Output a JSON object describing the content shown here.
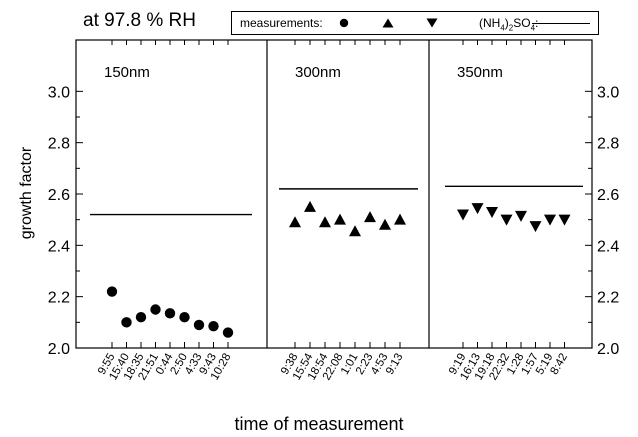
{
  "chart_data": {
    "type": "scatter",
    "title": "at 97.8 % RH",
    "xlabel": "time of measurement",
    "ylabel": "growth factor",
    "ylim": [
      2.0,
      3.2
    ],
    "yticks": [
      2.0,
      2.2,
      2.4,
      2.6,
      2.8,
      3.0
    ],
    "ytick_labels": [
      "2.0",
      "2.2",
      "2.4",
      "2.6",
      "2.8",
      "3.0"
    ],
    "grid": false,
    "legend": {
      "position": "top",
      "label": "measurements:",
      "symbols": [
        "circle",
        "triangle-up",
        "triangle-down"
      ],
      "reference_label": "(NH4)2SO4:"
    },
    "panels": [
      {
        "label": "150nm",
        "marker": "circle",
        "times": [
          "9:55",
          "15:40",
          "18:35",
          "21:51",
          "0:44",
          "2:50",
          "4:33",
          "9:43",
          "10:28"
        ],
        "values": [
          2.22,
          2.1,
          2.12,
          2.15,
          2.135,
          2.12,
          2.09,
          2.085,
          2.06
        ],
        "reference": 2.52
      },
      {
        "label": "300nm",
        "marker": "triangle-up",
        "times": [
          "9:38",
          "15:54",
          "18:54",
          "22:08",
          "1:01",
          "2:23",
          "4:53",
          "9:13"
        ],
        "values": [
          2.49,
          2.55,
          2.49,
          2.5,
          2.455,
          2.51,
          2.48,
          2.5
        ],
        "reference": 2.62
      },
      {
        "label": "350nm",
        "marker": "triangle-down",
        "times": [
          "9:19",
          "16:13",
          "19:18",
          "22:32",
          "1:28",
          "1:57",
          "5:19",
          "8:42"
        ],
        "values": [
          2.52,
          2.545,
          2.53,
          2.5,
          2.515,
          2.475,
          2.5,
          2.5
        ],
        "reference": 2.63
      }
    ]
  }
}
